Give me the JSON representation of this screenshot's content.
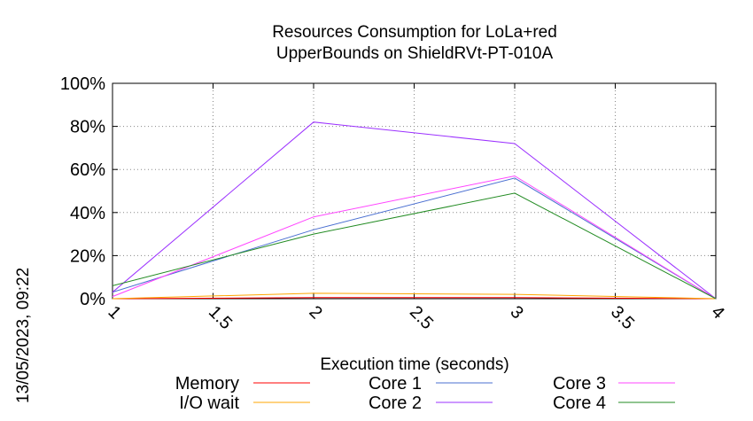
{
  "side_timestamp": "13/05/2023, 09:22",
  "chart_data": {
    "type": "line",
    "title": [
      "Resources Consumption for LoLa+red",
      "UpperBounds on ShieldRVt-PT-010A"
    ],
    "xlabel": "Execution time (seconds)",
    "ylabel": "",
    "xlim": [
      1,
      4
    ],
    "ylim": [
      0,
      100
    ],
    "x_ticks": [
      "1",
      "1.5",
      "2",
      "2.5",
      "3",
      "3.5",
      "4"
    ],
    "y_ticks": [
      "0%",
      "20%",
      "40%",
      "60%",
      "80%",
      "100%"
    ],
    "grid": true,
    "legend_position": "bottom",
    "x": [
      1,
      2,
      3,
      4
    ],
    "series": [
      {
        "name": "Memory",
        "color": "#ff0000",
        "values": [
          0,
          0.5,
          0.5,
          0
        ]
      },
      {
        "name": "I/O wait",
        "color": "#ffa500",
        "values": [
          0,
          2.5,
          2,
          0
        ]
      },
      {
        "name": "Core 1",
        "color": "#4a6fd1",
        "values": [
          3,
          32,
          56,
          0
        ]
      },
      {
        "name": "Core 2",
        "color": "#9b30ff",
        "values": [
          3,
          82,
          72,
          0
        ]
      },
      {
        "name": "Core 3",
        "color": "#ff44ff",
        "values": [
          1,
          38,
          57,
          0
        ]
      },
      {
        "name": "Core 4",
        "color": "#228b22",
        "values": [
          6,
          30,
          49,
          0
        ]
      }
    ]
  }
}
